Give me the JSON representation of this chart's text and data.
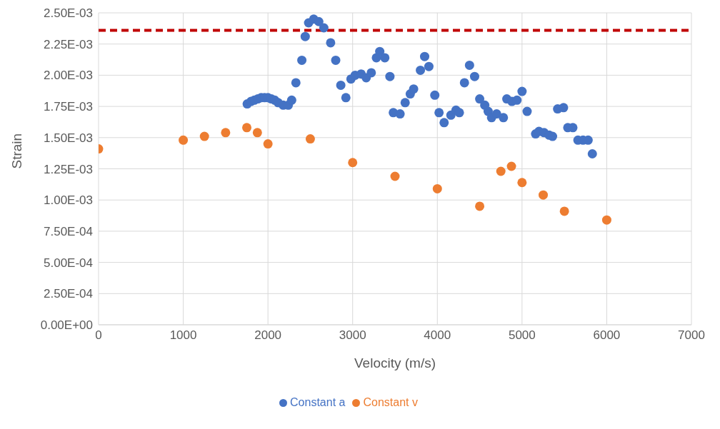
{
  "chart_data": {
    "type": "scatter",
    "xlabel": "Velocity (m/s)",
    "ylabel": "Strain",
    "xlim": [
      0,
      7000
    ],
    "xticks": [
      0,
      1000,
      2000,
      3000,
      4000,
      5000,
      6000,
      7000
    ],
    "ylim": [
      0,
      0.0025
    ],
    "yticks": [
      {
        "value": 0,
        "label": "0.00E+00"
      },
      {
        "value": 0.00025,
        "label": "2.50E-04"
      },
      {
        "value": 0.0005,
        "label": "5.00E-04"
      },
      {
        "value": 0.00075,
        "label": "7.50E-04"
      },
      {
        "value": 0.001,
        "label": "1.00E-03"
      },
      {
        "value": 0.00125,
        "label": "1.25E-03"
      },
      {
        "value": 0.0015,
        "label": "1.50E-03"
      },
      {
        "value": 0.00175,
        "label": "1.75E-03"
      },
      {
        "value": 0.002,
        "label": "2.00E-03"
      },
      {
        "value": 0.00225,
        "label": "2.25E-03"
      },
      {
        "value": 0.0025,
        "label": "2.50E-03"
      }
    ],
    "grid": true,
    "legend": "bottom",
    "marker": "circle",
    "ref_lines": [
      {
        "axis": "y",
        "value": 0.00236,
        "color": "#c00000",
        "line_style": "dashed"
      }
    ],
    "series": [
      {
        "name": "Constant a",
        "color": "#4472c4",
        "x": [
          1755,
          1800,
          1840,
          1880,
          1920,
          1960,
          2000,
          2040,
          2080,
          2120,
          2180,
          2240,
          2280,
          2330,
          2400,
          2440,
          2480,
          2540,
          2600,
          2660,
          2740,
          2800,
          2860,
          2920,
          2980,
          3030,
          3100,
          3160,
          3220,
          3280,
          3320,
          3380,
          3440,
          3480,
          3560,
          3620,
          3680,
          3720,
          3800,
          3850,
          3900,
          3970,
          4020,
          4080,
          4160,
          4220,
          4260,
          4320,
          4380,
          4440,
          4500,
          4560,
          4600,
          4640,
          4700,
          4780,
          4820,
          4880,
          4940,
          5000,
          5060,
          5160,
          5200,
          5260,
          5320,
          5360,
          5420,
          5490,
          5540,
          5600,
          5660,
          5720,
          5780,
          5830
        ],
        "values": [
          0.00177,
          0.00179,
          0.0018,
          0.00181,
          0.00182,
          0.00182,
          0.00182,
          0.00181,
          0.0018,
          0.00178,
          0.00176,
          0.00176,
          0.0018,
          0.00194,
          0.00212,
          0.00231,
          0.00242,
          0.00245,
          0.00243,
          0.00238,
          0.00226,
          0.00212,
          0.00192,
          0.00182,
          0.00197,
          0.002,
          0.00201,
          0.00198,
          0.00202,
          0.00214,
          0.00219,
          0.00214,
          0.00199,
          0.0017,
          0.00169,
          0.00178,
          0.00185,
          0.00189,
          0.00204,
          0.00215,
          0.00207,
          0.00184,
          0.0017,
          0.00162,
          0.00168,
          0.00172,
          0.0017,
          0.00194,
          0.00208,
          0.00199,
          0.00181,
          0.00176,
          0.00171,
          0.00166,
          0.00169,
          0.00166,
          0.00181,
          0.00179,
          0.0018,
          0.00187,
          0.00171,
          0.00153,
          0.00155,
          0.00154,
          0.00152,
          0.00151,
          0.00173,
          0.00174,
          0.00158,
          0.00158,
          0.00148,
          0.00148,
          0.00148,
          0.00137
        ]
      },
      {
        "name": "Constant v",
        "color": "#ed7d31",
        "x": [
          0,
          1000,
          1250,
          1500,
          1750,
          1875,
          2000,
          2500,
          3000,
          3500,
          4000,
          4500,
          4750,
          4875,
          5000,
          5250,
          5500,
          6000
        ],
        "values": [
          0.00141,
          0.00148,
          0.00151,
          0.00154,
          0.00158,
          0.00154,
          0.00145,
          0.00149,
          0.0013,
          0.00119,
          0.00109,
          0.00095,
          0.00123,
          0.00127,
          0.00114,
          0.00104,
          0.00091,
          0.00084
        ]
      }
    ]
  }
}
